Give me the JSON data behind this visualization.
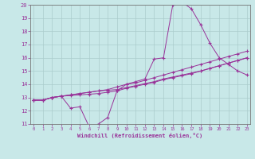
{
  "xlabel": "Windchill (Refroidissement éolien,°C)",
  "bg_color": "#c8e8e8",
  "line_color": "#993399",
  "grid_color": "#aacccc",
  "xlim_min": 0,
  "xlim_max": 23,
  "ylim_min": 11,
  "ylim_max": 20,
  "xticks": [
    0,
    1,
    2,
    3,
    4,
    5,
    6,
    7,
    8,
    9,
    10,
    11,
    12,
    13,
    14,
    15,
    16,
    17,
    18,
    19,
    20,
    21,
    22,
    23
  ],
  "yticks": [
    11,
    12,
    13,
    14,
    15,
    16,
    17,
    18,
    19,
    20
  ],
  "line1": [
    12.8,
    12.8,
    13.0,
    13.1,
    12.2,
    12.3,
    10.8,
    11.0,
    11.5,
    13.5,
    14.0,
    14.2,
    14.4,
    15.9,
    16.0,
    20.0,
    20.2,
    19.7,
    18.5,
    17.1,
    16.0,
    15.5,
    15.0,
    14.7
  ],
  "line2": [
    12.8,
    12.8,
    13.0,
    13.1,
    13.2,
    13.3,
    13.4,
    13.5,
    13.6,
    13.8,
    14.0,
    14.1,
    14.3,
    14.5,
    14.7,
    14.9,
    15.1,
    15.3,
    15.5,
    15.7,
    15.9,
    16.1,
    16.3,
    16.5
  ],
  "line3": [
    12.8,
    12.8,
    13.0,
    13.1,
    13.15,
    13.2,
    13.25,
    13.3,
    13.4,
    13.5,
    13.7,
    13.85,
    14.0,
    14.15,
    14.35,
    14.5,
    14.65,
    14.8,
    15.0,
    15.2,
    15.4,
    15.6,
    15.8,
    16.0
  ],
  "line4": [
    12.8,
    12.8,
    13.0,
    13.1,
    13.2,
    13.3,
    13.4,
    13.5,
    13.55,
    13.6,
    13.75,
    13.9,
    14.05,
    14.2,
    14.4,
    14.55,
    14.7,
    14.85,
    15.0,
    15.2,
    15.4,
    15.6,
    15.8,
    16.0
  ]
}
